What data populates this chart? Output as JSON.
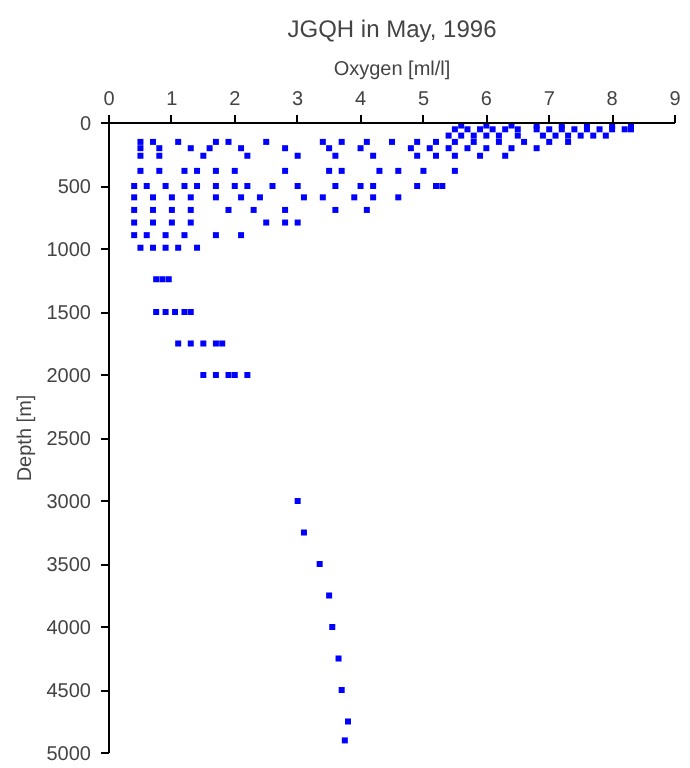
{
  "chart_data": {
    "type": "scatter",
    "title": "JGQH in May, 1996",
    "xlabel": "Oxygen [ml/l]",
    "ylabel": "Depth [m]",
    "xlim": [
      0,
      9
    ],
    "xticks": [
      0,
      1,
      2,
      3,
      4,
      5,
      6,
      7,
      8,
      9
    ],
    "ylim": [
      5000,
      0
    ],
    "yticks": [
      0,
      500,
      1000,
      1500,
      2000,
      2500,
      3000,
      3500,
      4000,
      4500,
      5000
    ],
    "grid": false,
    "marker": "square",
    "series": [
      {
        "color": "#0000ff",
        "x": [
          5.6,
          6.0,
          6.4,
          6.8,
          7.2,
          7.6,
          8.0,
          8.3,
          5.5,
          5.7,
          5.9,
          6.1,
          6.3,
          6.5,
          6.8,
          7.0,
          7.2,
          7.4,
          7.6,
          7.8,
          8.0,
          8.2,
          8.3,
          5.4,
          5.6,
          5.8,
          6.0,
          6.2,
          6.5,
          6.9,
          7.1,
          7.3,
          7.5,
          7.7,
          7.9,
          0.5,
          0.7,
          1.1,
          1.7,
          1.9,
          2.5,
          3.4,
          3.7,
          4.1,
          4.5,
          4.9,
          5.2,
          5.5,
          5.8,
          6.2,
          6.6,
          7.0,
          7.3,
          0.5,
          0.8,
          1.3,
          1.6,
          2.1,
          2.8,
          3.5,
          4.0,
          4.8,
          5.1,
          5.4,
          5.7,
          6.0,
          6.4,
          6.8,
          0.5,
          0.8,
          1.5,
          2.2,
          3.0,
          3.6,
          4.2,
          4.9,
          5.2,
          5.5,
          5.9,
          6.3,
          0.5,
          0.8,
          1.2,
          1.4,
          1.7,
          2.0,
          2.8,
          3.5,
          3.7,
          4.3,
          4.6,
          5.0,
          5.5,
          0.4,
          0.6,
          0.9,
          1.2,
          1.4,
          1.7,
          2.0,
          2.2,
          2.6,
          3.0,
          3.6,
          4.0,
          4.2,
          4.9,
          5.2,
          5.3,
          0.4,
          0.7,
          1.0,
          1.3,
          1.7,
          2.1,
          2.4,
          3.1,
          3.4,
          3.9,
          4.2,
          4.6,
          0.4,
          0.7,
          1.0,
          1.3,
          1.9,
          2.3,
          2.8,
          3.6,
          4.1,
          0.4,
          0.7,
          1.0,
          1.3,
          2.5,
          2.8,
          3.0,
          0.4,
          0.6,
          0.9,
          1.2,
          1.7,
          2.1,
          0.5,
          0.7,
          0.9,
          1.1,
          1.4,
          0.75,
          0.85,
          0.95,
          0.75,
          0.9,
          1.05,
          1.2,
          1.3,
          1.1,
          1.3,
          1.5,
          1.7,
          1.8,
          1.5,
          1.7,
          1.9,
          2.0,
          2.2,
          3.0,
          3.1,
          3.35,
          3.5,
          3.55,
          3.65,
          3.7,
          3.8,
          3.75
        ],
        "values": [
          20,
          20,
          20,
          20,
          20,
          20,
          20,
          20,
          50,
          50,
          50,
          50,
          50,
          50,
          50,
          50,
          50,
          50,
          50,
          50,
          50,
          50,
          50,
          100,
          100,
          100,
          100,
          100,
          100,
          100,
          100,
          100,
          100,
          100,
          100,
          150,
          150,
          150,
          150,
          150,
          150,
          150,
          150,
          150,
          150,
          150,
          150,
          150,
          150,
          150,
          150,
          150,
          150,
          200,
          200,
          200,
          200,
          200,
          200,
          200,
          200,
          200,
          200,
          200,
          200,
          200,
          200,
          200,
          260,
          260,
          260,
          260,
          260,
          260,
          260,
          260,
          260,
          260,
          260,
          260,
          380,
          380,
          380,
          380,
          380,
          380,
          380,
          380,
          380,
          380,
          380,
          380,
          380,
          500,
          500,
          500,
          500,
          500,
          500,
          500,
          500,
          500,
          500,
          500,
          500,
          500,
          500,
          500,
          500,
          590,
          590,
          590,
          590,
          590,
          590,
          590,
          590,
          590,
          590,
          590,
          590,
          690,
          690,
          690,
          690,
          690,
          690,
          690,
          690,
          690,
          790,
          790,
          790,
          790,
          790,
          790,
          790,
          890,
          890,
          890,
          890,
          890,
          890,
          990,
          990,
          990,
          990,
          990,
          1240,
          1240,
          1240,
          1500,
          1500,
          1500,
          1500,
          1500,
          1750,
          1750,
          1750,
          1750,
          1750,
          2000,
          2000,
          2000,
          2000,
          2000,
          3000,
          3250,
          3500,
          3750,
          4000,
          4250,
          4500,
          4750,
          4900
        ]
      }
    ]
  }
}
